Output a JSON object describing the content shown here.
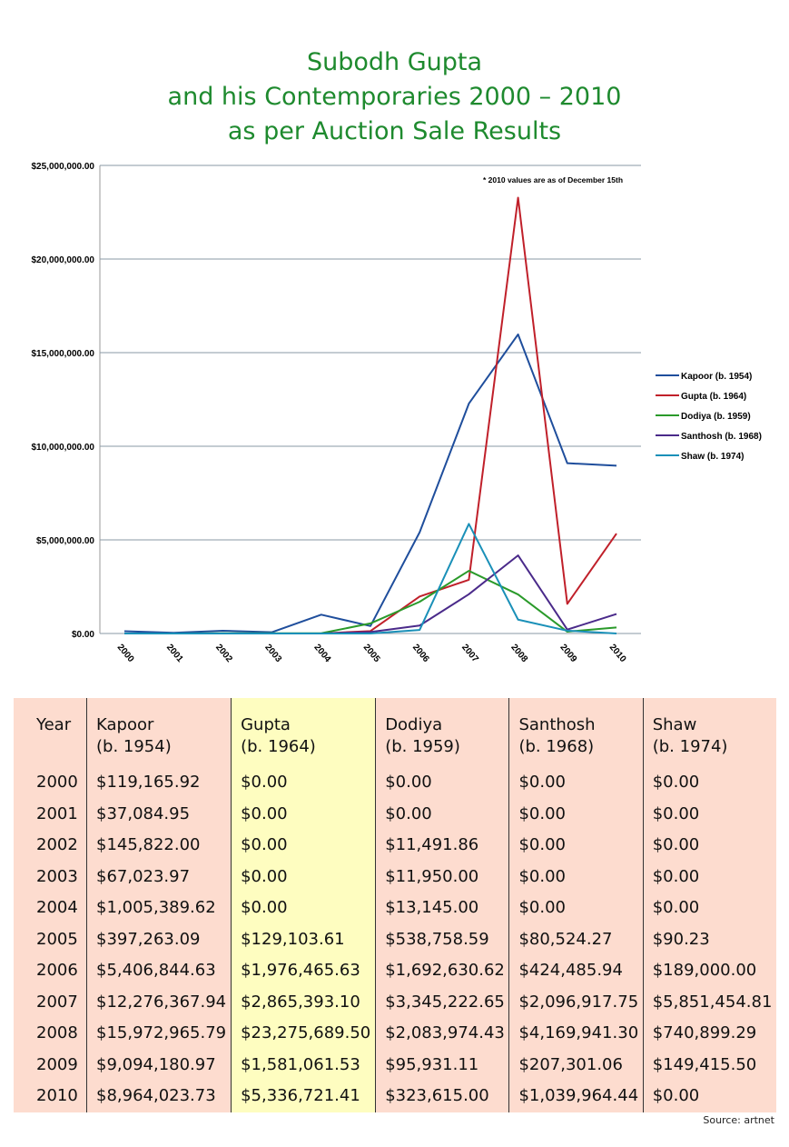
{
  "chart_data": {
    "type": "line",
    "title": [
      "Subodh Gupta",
      "and his Contemporaries 2000 – 2010",
      "as per Auction Sale Results"
    ],
    "annotation": "* 2010  values are as of December 15th",
    "x": [
      "2000",
      "2001",
      "2002",
      "2003",
      "2004",
      "2005",
      "2006",
      "2007",
      "2008",
      "2009",
      "2010"
    ],
    "ylim": [
      0,
      25000000
    ],
    "yticks": [
      0,
      5000000,
      10000000,
      15000000,
      20000000,
      25000000
    ],
    "ytick_labels": [
      "$0.00",
      "$5,000,000.00",
      "$10,000,000.00",
      "$15,000,000.00",
      "$20,000,000.00",
      "$25,000,000.00"
    ],
    "grid": true,
    "legend_position": "right",
    "series": [
      {
        "name": "Kapoor (b. 1954)",
        "color": "#1f4e9c",
        "values": [
          119165.92,
          37084.95,
          145822,
          67023.97,
          1005389.62,
          397263.09,
          5406844.63,
          12276367.94,
          15972965.79,
          9094180.97,
          8964023.73
        ]
      },
      {
        "name": "Gupta (b. 1964)",
        "color": "#c0202a",
        "values": [
          0,
          0,
          0,
          0,
          0,
          129103.61,
          1976465.63,
          2865393.1,
          23275689.5,
          1581061.53,
          5336721.41
        ]
      },
      {
        "name": "Dodiya (b. 1959)",
        "color": "#2a9a2a",
        "values": [
          0,
          0,
          11491.86,
          11950,
          13145,
          538758.59,
          1692630.62,
          3345222.65,
          2083974.43,
          95931.11,
          323615
        ]
      },
      {
        "name": "Santhosh (b. 1968)",
        "color": "#4a2a8a",
        "values": [
          0,
          0,
          0,
          0,
          0,
          80524.27,
          424485.94,
          2096917.75,
          4169941.3,
          207301.06,
          1039964.44
        ]
      },
      {
        "name": "Shaw (b. 1974)",
        "color": "#1a90b8",
        "values": [
          0,
          0,
          0,
          0,
          0,
          90.23,
          189000,
          5851454.81,
          740899.29,
          149415.5,
          0
        ]
      }
    ]
  },
  "table": {
    "headers": [
      [
        "Year",
        ""
      ],
      [
        "Kapoor",
        "(b. 1954)"
      ],
      [
        "Gupta",
        "(b. 1964)"
      ],
      [
        "Dodiya",
        "(b. 1959)"
      ],
      [
        "Santhosh",
        "(b. 1968)"
      ],
      [
        "Shaw",
        "(b. 1974)"
      ]
    ],
    "rows": [
      [
        "2000",
        "$119,165.92",
        "$0.00",
        "$0.00",
        "$0.00",
        "$0.00"
      ],
      [
        "2001",
        "$37,084.95",
        "$0.00",
        "$0.00",
        "$0.00",
        "$0.00"
      ],
      [
        "2002",
        "$145,822.00",
        "$0.00",
        "$11,491.86",
        "$0.00",
        "$0.00"
      ],
      [
        "2003",
        "$67,023.97",
        "$0.00",
        "$11,950.00",
        "$0.00",
        "$0.00"
      ],
      [
        "2004",
        "$1,005,389.62",
        "$0.00",
        "$13,145.00",
        "$0.00",
        "$0.00"
      ],
      [
        "2005",
        "$397,263.09",
        "$129,103.61",
        "$538,758.59",
        "$80,524.27",
        "$90.23"
      ],
      [
        "2006",
        "$5,406,844.63",
        "$1,976,465.63",
        "$1,692,630.62",
        "$424,485.94",
        "$189,000.00"
      ],
      [
        "2007",
        "$12,276,367.94",
        "$2,865,393.10",
        "$3,345,222.65",
        "$2,096,917.75",
        "$5,851,454.81"
      ],
      [
        "2008",
        "$15,972,965.79",
        "$23,275,689.50",
        "$2,083,974.43",
        "$4,169,941.30",
        "$740,899.29"
      ],
      [
        "2009",
        "$9,094,180.97",
        "$1,581,061.53",
        "$95,931.11",
        "$207,301.06",
        "$149,415.50"
      ],
      [
        "2010",
        "$8,964,023.73",
        "$5,336,721.41",
        "$323,615.00",
        "$1,039,964.44",
        "$0.00"
      ]
    ]
  },
  "source": "Source: artnet"
}
